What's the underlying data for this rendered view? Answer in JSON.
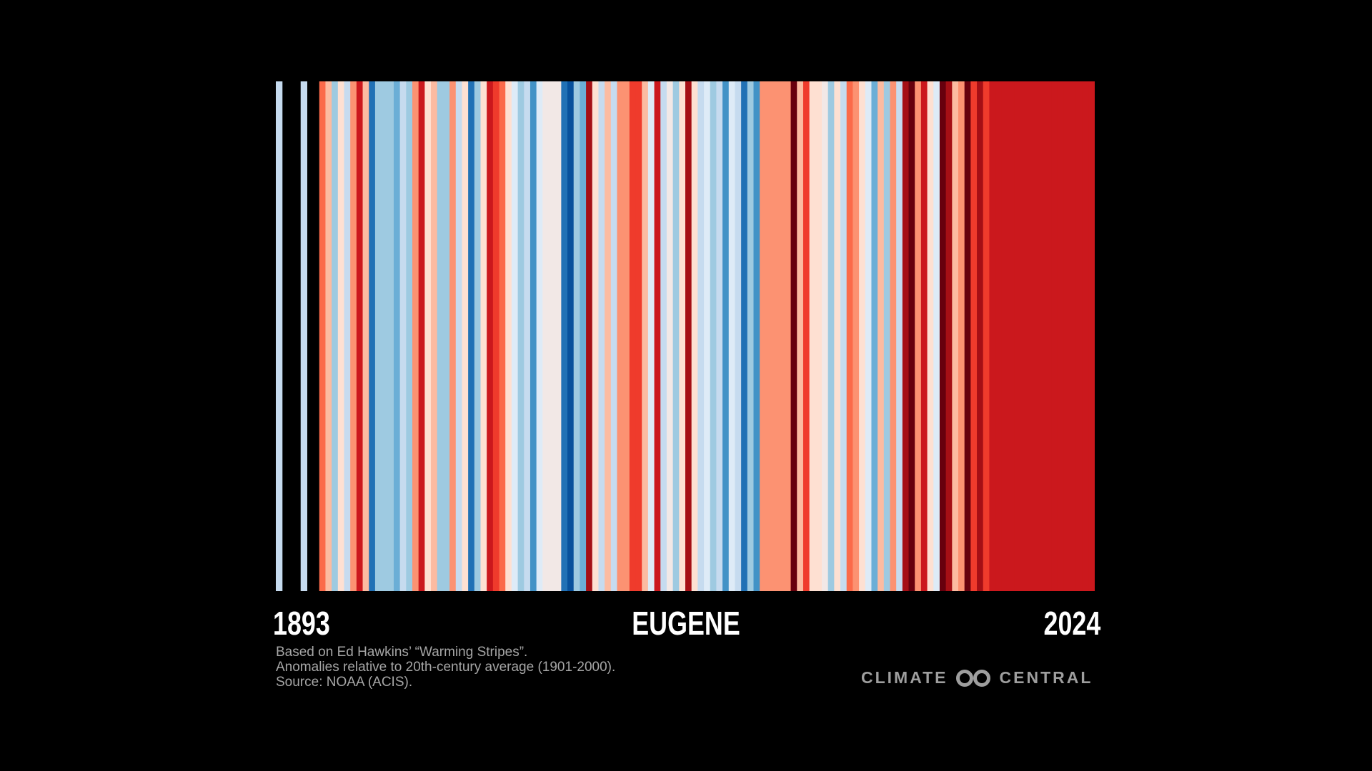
{
  "chart_data": {
    "type": "warming-stripes",
    "title": "EUGENE",
    "x_start_label": "1893",
    "x_end_label": "2024",
    "start_year": 1893,
    "end_year": 2024,
    "missing_years": [
      1894,
      1895,
      1896,
      1898,
      1899
    ],
    "palette": {
      "B4": "#08306b",
      "B3": "#08519c",
      "B2": "#2171b5",
      "B1": "#4292c6",
      "B0": "#6baed6",
      "L3": "#9ecae1",
      "L2": "#c6dbef",
      "L1": "#deebf7",
      "N": "#f2e8e6",
      "R1": "#fee0d2",
      "R2": "#fcbba1",
      "R3": "#fc9272",
      "R4": "#fb6a4a",
      "R5": "#ef3b2c",
      "R6": "#cb181d",
      "R7": "#a50f15",
      "R8": "#67000d"
    },
    "years": [
      [
        1893,
        "L2"
      ],
      [
        1894,
        null
      ],
      [
        1895,
        null
      ],
      [
        1896,
        null
      ],
      [
        1897,
        "L2"
      ],
      [
        1898,
        null
      ],
      [
        1899,
        null
      ],
      [
        1900,
        "R4"
      ],
      [
        1901,
        "R2"
      ],
      [
        1902,
        "L3"
      ],
      [
        1903,
        "R1"
      ],
      [
        1904,
        "L2"
      ],
      [
        1905,
        "R3"
      ],
      [
        1906,
        "R6"
      ],
      [
        1907,
        "R2"
      ],
      [
        1908,
        "B2"
      ],
      [
        1909,
        "L3"
      ],
      [
        1910,
        "L3"
      ],
      [
        1911,
        "L3"
      ],
      [
        1912,
        "B0"
      ],
      [
        1913,
        "L2"
      ],
      [
        1914,
        "L3"
      ],
      [
        1915,
        "R3"
      ],
      [
        1916,
        "R6"
      ],
      [
        1917,
        "R1"
      ],
      [
        1918,
        "R2"
      ],
      [
        1919,
        "L3"
      ],
      [
        1920,
        "L3"
      ],
      [
        1921,
        "R3"
      ],
      [
        1922,
        "L2"
      ],
      [
        1923,
        "R1"
      ],
      [
        1924,
        "B2"
      ],
      [
        1925,
        "L3"
      ],
      [
        1926,
        "R1"
      ],
      [
        1927,
        "R6"
      ],
      [
        1928,
        "R5"
      ],
      [
        1929,
        "R4"
      ],
      [
        1930,
        "R1"
      ],
      [
        1931,
        "L1"
      ],
      [
        1932,
        "L3"
      ],
      [
        1933,
        "L2"
      ],
      [
        1934,
        "B1"
      ],
      [
        1935,
        "L1"
      ],
      [
        1936,
        "N"
      ],
      [
        1937,
        "N"
      ],
      [
        1938,
        "N"
      ],
      [
        1939,
        "B2"
      ],
      [
        1940,
        "B3"
      ],
      [
        1941,
        "L3"
      ],
      [
        1942,
        "B0"
      ],
      [
        1943,
        "R7"
      ],
      [
        1944,
        "R1"
      ],
      [
        1945,
        "L2"
      ],
      [
        1946,
        "R2"
      ],
      [
        1947,
        "L2"
      ],
      [
        1948,
        "R3"
      ],
      [
        1949,
        "R3"
      ],
      [
        1950,
        "R5"
      ],
      [
        1951,
        "R5"
      ],
      [
        1952,
        "R2"
      ],
      [
        1953,
        "L1"
      ],
      [
        1954,
        "R6"
      ],
      [
        1955,
        "L2"
      ],
      [
        1956,
        "N"
      ],
      [
        1957,
        "L3"
      ],
      [
        1958,
        "R1"
      ],
      [
        1959,
        "R7"
      ],
      [
        1960,
        "R1"
      ],
      [
        1961,
        "L2"
      ],
      [
        1962,
        "L1"
      ],
      [
        1963,
        "L3"
      ],
      [
        1964,
        "L2"
      ],
      [
        1965,
        "B1"
      ],
      [
        1966,
        "L1"
      ],
      [
        1967,
        "L2"
      ],
      [
        1968,
        "B2"
      ],
      [
        1969,
        "L3"
      ],
      [
        1970,
        "B1"
      ],
      [
        1971,
        "R3"
      ],
      [
        1972,
        "R3"
      ],
      [
        1973,
        "R3"
      ],
      [
        1974,
        "R3"
      ],
      [
        1975,
        "R3"
      ],
      [
        1976,
        "R8"
      ],
      [
        1977,
        "R2"
      ],
      [
        1978,
        "R5"
      ],
      [
        1979,
        "R1"
      ],
      [
        1980,
        "R1"
      ],
      [
        1981,
        "N"
      ],
      [
        1982,
        "L3"
      ],
      [
        1983,
        "R1"
      ],
      [
        1984,
        "L2"
      ],
      [
        1985,
        "R4"
      ],
      [
        1986,
        "R3"
      ],
      [
        1987,
        "R1"
      ],
      [
        1988,
        "L1"
      ],
      [
        1989,
        "B0"
      ],
      [
        1990,
        "R2"
      ],
      [
        1991,
        "L3"
      ],
      [
        1992,
        "R3"
      ],
      [
        1993,
        "L2"
      ],
      [
        1994,
        "R7"
      ],
      [
        1995,
        "R8"
      ],
      [
        1996,
        "R3"
      ],
      [
        1997,
        "R6"
      ],
      [
        1998,
        "R1"
      ],
      [
        1999,
        "L1"
      ],
      [
        2000,
        "R8"
      ],
      [
        2001,
        "R7"
      ],
      [
        2002,
        "R2"
      ],
      [
        2003,
        "R3"
      ],
      [
        2004,
        "R8"
      ],
      [
        2005,
        "R5"
      ],
      [
        2006,
        "R7"
      ],
      [
        2007,
        "R5"
      ],
      [
        2008,
        "R6"
      ],
      [
        2009,
        "R6"
      ],
      [
        2010,
        "R6"
      ],
      [
        2011,
        "R6"
      ],
      [
        2012,
        "R6"
      ],
      [
        2013,
        "R6"
      ],
      [
        2014,
        "R6"
      ],
      [
        2015,
        "R6"
      ],
      [
        2016,
        "R6"
      ],
      [
        2017,
        "R6"
      ],
      [
        2018,
        "R6"
      ],
      [
        2019,
        "R6"
      ],
      [
        2020,
        "R6"
      ],
      [
        2021,
        "R6"
      ],
      [
        2022,
        "R6"
      ],
      [
        2023,
        "R6"
      ],
      [
        2024,
        "R6"
      ]
    ]
  },
  "footnote": {
    "line1": "Based on Ed Hawkins’ “Warming Stripes”.",
    "line2": "Anomalies relative to 20th-century average (1901-2000).",
    "line3": "Source: NOAA (ACIS)."
  },
  "logo": {
    "left_text": "CLIMATE",
    "right_text": "CENTRAL",
    "icon": "linked-circles-icon"
  }
}
